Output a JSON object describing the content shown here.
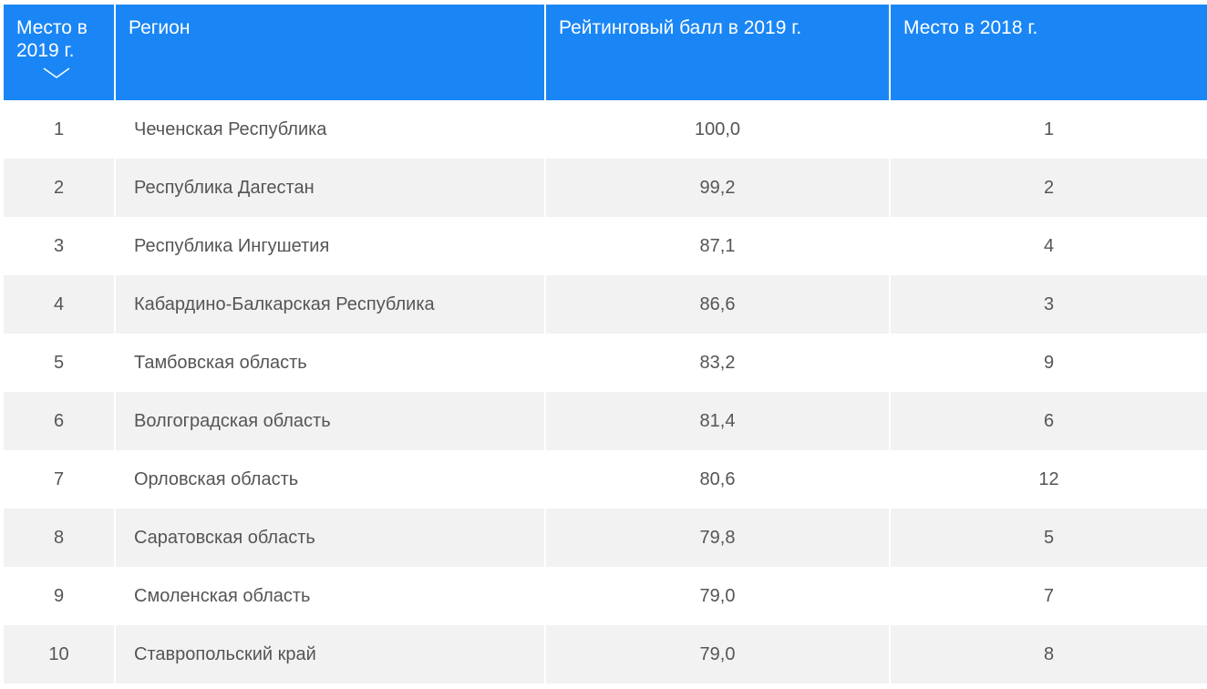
{
  "table": {
    "columns": [
      {
        "key": "place_2019",
        "label": "Место в 2019 г."
      },
      {
        "key": "region",
        "label": "Регион"
      },
      {
        "key": "score_2019",
        "label": "Рейтинговый балл в 2019 г."
      },
      {
        "key": "place_2018",
        "label": "Место в 2018 г."
      }
    ],
    "sort": {
      "column": "place_2019",
      "direction": "ascending",
      "icon": "chevron-down-icon"
    },
    "rows": [
      {
        "place_2019": "1",
        "region": "Чеченская Республика",
        "score_2019": "100,0",
        "place_2018": "1"
      },
      {
        "place_2019": "2",
        "region": "Республика Дагестан",
        "score_2019": "99,2",
        "place_2018": "2"
      },
      {
        "place_2019": "3",
        "region": "Республика Ингушетия",
        "score_2019": "87,1",
        "place_2018": "4"
      },
      {
        "place_2019": "4",
        "region": "Кабардино-Балкарская Республика",
        "score_2019": "86,6",
        "place_2018": "3"
      },
      {
        "place_2019": "5",
        "region": "Тамбовская область",
        "score_2019": "83,2",
        "place_2018": "9"
      },
      {
        "place_2019": "6",
        "region": "Волгоградская область",
        "score_2019": "81,4",
        "place_2018": "6"
      },
      {
        "place_2019": "7",
        "region": "Орловская область",
        "score_2019": "80,6",
        "place_2018": "12"
      },
      {
        "place_2019": "8",
        "region": "Саратовская область",
        "score_2019": "79,8",
        "place_2018": "5"
      },
      {
        "place_2019": "9",
        "region": "Смоленская область",
        "score_2019": "79,0",
        "place_2018": "7"
      },
      {
        "place_2019": "10",
        "region": "Ставропольский край",
        "score_2019": "79,0",
        "place_2018": "8"
      }
    ]
  },
  "colors": {
    "header_bg": "#1a86f5",
    "header_text": "#ffffff",
    "row_alt_bg": "#f2f2f2",
    "body_text": "#555555"
  }
}
